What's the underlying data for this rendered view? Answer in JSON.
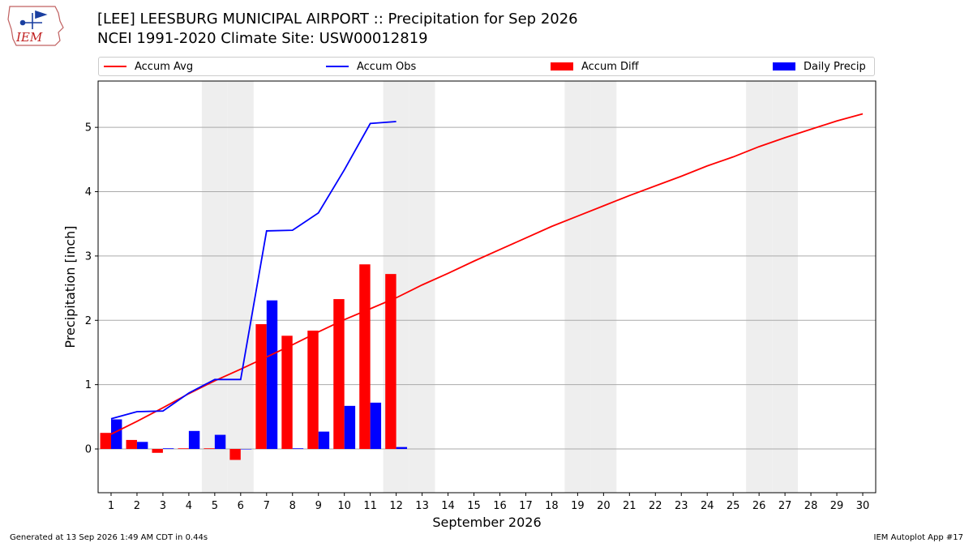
{
  "header": {
    "logo_text": "IEM",
    "title_line1": "[LEE] LEESBURG MUNICIPAL AIRPORT :: Precipitation for Sep 2026",
    "title_line2": "NCEI 1991-2020 Climate Site: USW00012819"
  },
  "footer": {
    "left": "Generated at 13 Sep 2026 1:49 AM CDT in 0.44s",
    "right": "IEM Autoplot App #17"
  },
  "colors": {
    "avg": "#ff0000",
    "obs": "#0000ff",
    "diff": "#ff0000",
    "daily": "#0000ff",
    "weekend_shade": "#eeeeee",
    "grid": "#aaaaaa"
  },
  "chart_data": {
    "type": "bar",
    "title": "[LEE] LEESBURG MUNICIPAL AIRPORT :: Precipitation for Sep 2026",
    "subtitle": "NCEI 1991-2020 Climate Site: USW00012819",
    "xlabel": "September 2026",
    "ylabel": "Precipitation [inch]",
    "xlim": [
      0.5,
      30.5
    ],
    "ylim": [
      -0.68,
      5.72
    ],
    "yticks": [
      0,
      1,
      2,
      3,
      4,
      5
    ],
    "grid": true,
    "legend_placement": "top",
    "legend": [
      "Accum Avg",
      "Accum Obs",
      "Accum Diff",
      "Daily Precip"
    ],
    "days": [
      1,
      2,
      3,
      4,
      5,
      6,
      7,
      8,
      9,
      10,
      11,
      12,
      13,
      14,
      15,
      16,
      17,
      18,
      19,
      20,
      21,
      22,
      23,
      24,
      25,
      26,
      27,
      28,
      29,
      30
    ],
    "weekend_days": [
      5,
      6,
      12,
      13,
      19,
      20,
      26,
      27
    ],
    "series": [
      {
        "name": "Accum Avg",
        "type": "line",
        "values": [
          0.23,
          0.43,
          0.64,
          0.86,
          1.06,
          1.24,
          1.43,
          1.62,
          1.82,
          2.01,
          2.18,
          2.35,
          2.55,
          2.73,
          2.92,
          3.1,
          3.28,
          3.46,
          3.62,
          3.78,
          3.94,
          4.09,
          4.24,
          4.4,
          4.54,
          4.7,
          4.84,
          4.97,
          5.1,
          5.21
        ]
      },
      {
        "name": "Accum Obs",
        "type": "line",
        "values": [
          0.47,
          0.58,
          0.59,
          0.87,
          1.08,
          1.08,
          3.39,
          3.4,
          3.67,
          4.34,
          5.06,
          5.09
        ]
      },
      {
        "name": "Accum Diff",
        "type": "bar",
        "values": [
          0.25,
          0.14,
          -0.06,
          0.01,
          0.01,
          -0.17,
          1.94,
          1.76,
          1.84,
          2.33,
          2.87,
          2.72
        ]
      },
      {
        "name": "Daily Precip",
        "type": "bar",
        "values": [
          0.46,
          0.11,
          0.01,
          0.28,
          0.22,
          0.0,
          2.31,
          0.01,
          0.27,
          0.67,
          0.72,
          0.03
        ]
      }
    ]
  }
}
